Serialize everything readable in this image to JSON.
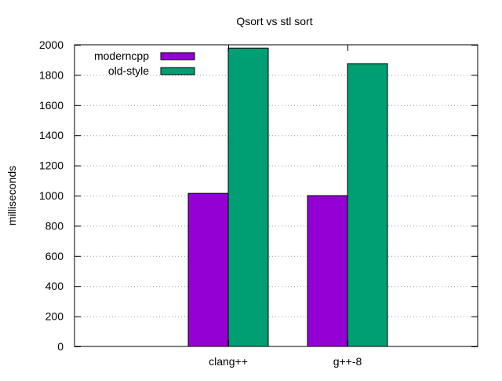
{
  "chart_data": {
    "type": "bar",
    "title": "Qsort vs stl sort",
    "xlabel": "",
    "ylabel": "milliseconds",
    "categories": [
      "clang++",
      "g++-8"
    ],
    "series": [
      {
        "name": "moderncpp",
        "color": "#9400d3",
        "values": [
          1015,
          1000
        ]
      },
      {
        "name": "old-style",
        "color": "#009e73",
        "values": [
          1978,
          1875
        ]
      }
    ],
    "ylim": [
      0,
      2000
    ],
    "yticks": [
      0,
      200,
      400,
      600,
      800,
      1000,
      1200,
      1400,
      1600,
      1800,
      2000
    ],
    "grid": true,
    "legend_position": "top-left"
  }
}
